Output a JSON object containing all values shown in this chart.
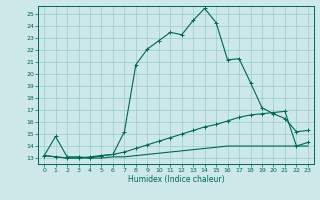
{
  "xlabel": "Humidex (Indice chaleur)",
  "bg_color": "#cce8e8",
  "grid_color": "#99cccc",
  "line_color": "#006655",
  "xlim": [
    -0.5,
    23.5
  ],
  "ylim": [
    12.5,
    25.7
  ],
  "yticks": [
    13,
    14,
    15,
    16,
    17,
    18,
    19,
    20,
    21,
    22,
    23,
    24,
    25
  ],
  "xticks": [
    0,
    1,
    2,
    3,
    4,
    5,
    6,
    7,
    8,
    9,
    10,
    11,
    12,
    13,
    14,
    15,
    16,
    17,
    18,
    19,
    20,
    21,
    22,
    23
  ],
  "line1_x": [
    0,
    1,
    2,
    3,
    4,
    5,
    6,
    7,
    8,
    9,
    10,
    11,
    12,
    13,
    14,
    15,
    16,
    17,
    18,
    19,
    20,
    21,
    22,
    23
  ],
  "line1_y": [
    13.2,
    14.8,
    13.1,
    13.1,
    13.0,
    13.2,
    13.3,
    15.2,
    20.8,
    22.1,
    22.8,
    23.5,
    23.3,
    24.5,
    25.5,
    24.3,
    21.2,
    21.3,
    19.3,
    17.2,
    16.7,
    16.3,
    15.2,
    15.3
  ],
  "line2_x": [
    0,
    1,
    2,
    3,
    4,
    5,
    6,
    7,
    8,
    9,
    10,
    11,
    12,
    13,
    14,
    15,
    16,
    17,
    18,
    19,
    20,
    21,
    22,
    23
  ],
  "line2_y": [
    13.2,
    13.1,
    13.0,
    13.0,
    13.1,
    13.2,
    13.3,
    13.5,
    13.8,
    14.1,
    14.4,
    14.7,
    15.0,
    15.3,
    15.6,
    15.8,
    16.1,
    16.4,
    16.6,
    16.7,
    16.8,
    16.9,
    14.0,
    14.3
  ],
  "line3_x": [
    0,
    1,
    2,
    3,
    4,
    5,
    6,
    7,
    8,
    9,
    10,
    11,
    12,
    13,
    14,
    15,
    16,
    17,
    18,
    19,
    20,
    21,
    22,
    23
  ],
  "line3_y": [
    13.2,
    13.1,
    13.0,
    13.0,
    13.0,
    13.0,
    13.1,
    13.1,
    13.2,
    13.3,
    13.4,
    13.5,
    13.6,
    13.7,
    13.8,
    13.9,
    14.0,
    14.0,
    14.0,
    14.0,
    14.0,
    14.0,
    14.0,
    14.0
  ]
}
